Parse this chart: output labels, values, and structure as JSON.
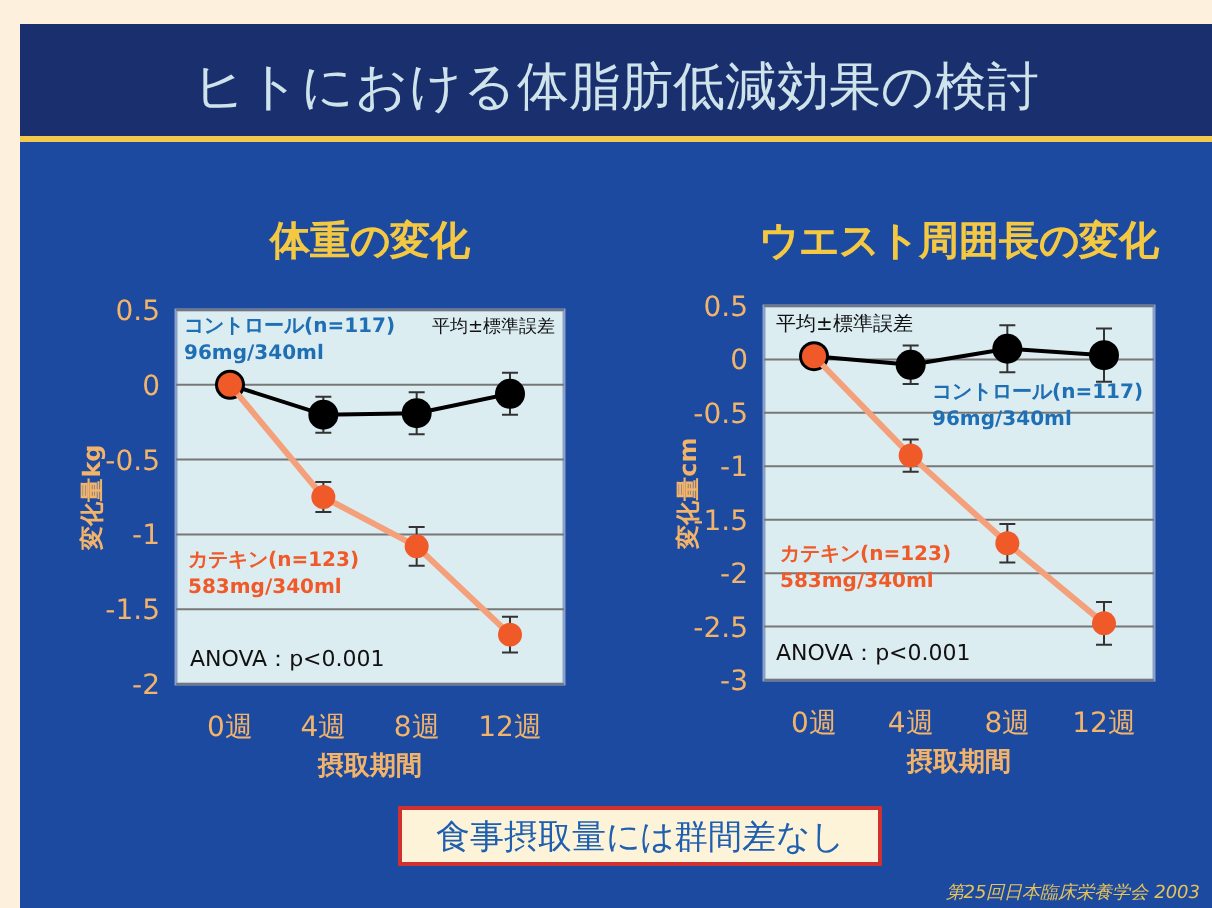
{
  "chart_data": [
    {
      "type": "other",
      "title": "ヒトにおける体脂肪低減効果の検討",
      "annotations": [
        "食事摂取量には群間差なし",
        "第25回日本臨床栄養学会 2003"
      ]
    },
    {
      "type": "line",
      "title": "体重の変化",
      "xlabel": "摂取期間",
      "ylabel": "変化量kg",
      "categories": [
        "0週",
        "4週",
        "8週",
        "12週"
      ],
      "ylim": [
        -2,
        0.5
      ],
      "yticks": [
        0.5,
        0,
        -0.5,
        -1,
        -1.5,
        -2
      ],
      "grid": "y",
      "legend": false,
      "marker": "circle",
      "annotations": [
        "平均±標準誤差",
        "ANOVA：p<0.001"
      ],
      "series": [
        {
          "name": "コントロール(n=117)\n96mg/340ml",
          "color": "#000000",
          "values": [
            0,
            -0.2,
            -0.19,
            -0.06
          ],
          "errors": [
            null,
            0.12,
            0.14,
            0.14
          ]
        },
        {
          "name": "カテキン(n=123)\n583mg/340ml",
          "color": "#f05a28",
          "values": [
            0,
            -0.75,
            -1.08,
            -1.67
          ],
          "errors": [
            null,
            0.1,
            0.13,
            0.12
          ]
        }
      ]
    },
    {
      "type": "line",
      "title": "ウエスト周囲長の変化",
      "xlabel": "摂取期間",
      "ylabel": "変化量cm",
      "categories": [
        "0週",
        "4週",
        "8週",
        "12週"
      ],
      "ylim": [
        -3,
        0.5
      ],
      "yticks": [
        0.5,
        0,
        -0.5,
        -1,
        -1.5,
        -2,
        -2.5,
        -3
      ],
      "grid": "y",
      "legend": false,
      "marker": "circle",
      "annotations": [
        "平均±標準誤差",
        "ANOVA：p<0.001"
      ],
      "series": [
        {
          "name": "コントロール(n=117)\n96mg/340ml",
          "color": "#000000",
          "values": [
            0.03,
            -0.05,
            0.1,
            0.04
          ],
          "errors": [
            null,
            0.18,
            0.22,
            0.25
          ]
        },
        {
          "name": "カテキン(n=123)\n583mg/340ml",
          "color": "#f05a28",
          "values": [
            0.03,
            -0.9,
            -1.72,
            -2.47
          ],
          "errors": [
            null,
            0.15,
            0.18,
            0.2
          ]
        }
      ]
    }
  ]
}
